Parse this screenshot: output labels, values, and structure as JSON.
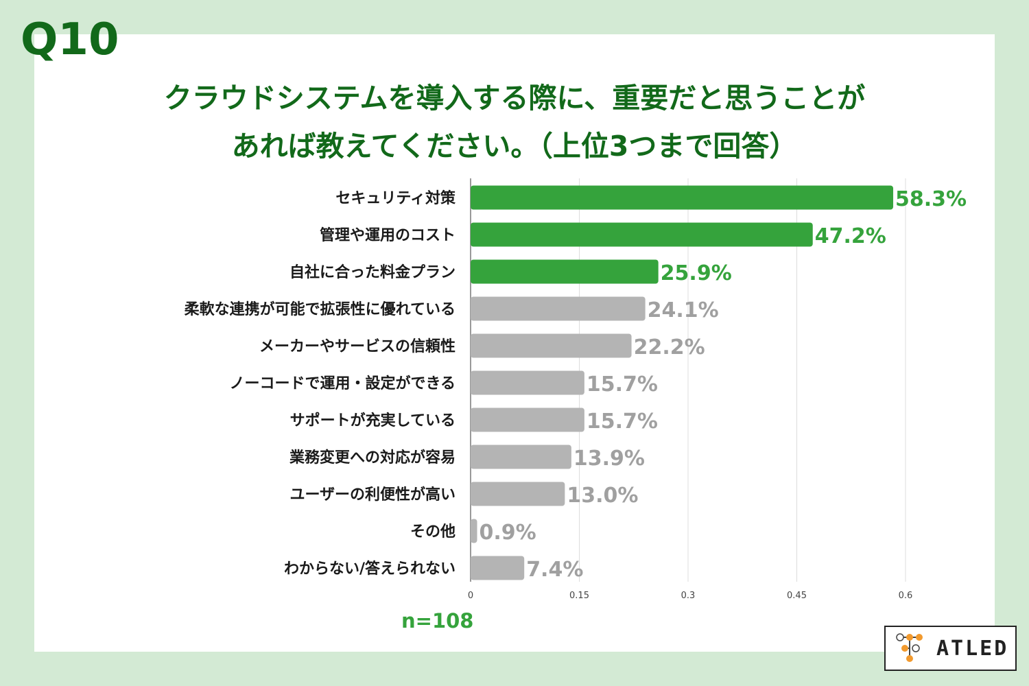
{
  "header": {
    "question_number": "Q10",
    "title_line1": "クラウドシステムを導入する際に、重要だと思うことが",
    "title_line2": "あれば教えてください。（上位3つまで回答）"
  },
  "sample_size": "n=108",
  "logo": {
    "text": "ATLED",
    "icon": "atled-node-logo-icon"
  },
  "colors": {
    "highlight_bar": "#35a33c",
    "other_bar": "#b4b4b4",
    "highlight_label": "#35a33c",
    "other_label": "#a0a0a0",
    "title": "#12691a",
    "background": "#d3ead4"
  },
  "chart_data": {
    "type": "bar",
    "orientation": "horizontal",
    "categories": [
      "セキュリティ対策",
      "管理や運用のコスト",
      "自社に合った料金プラン",
      "柔軟な連携が可能で拡張性に優れている",
      "メーカーやサービスの信頼性",
      "ノーコードで運用・設定ができる",
      "サポートが充実している",
      "業務変更への対応が容易",
      "ユーザーの利便性が高い",
      "その他",
      "わからない/答えられない"
    ],
    "values": [
      0.583,
      0.472,
      0.259,
      0.241,
      0.222,
      0.157,
      0.157,
      0.139,
      0.13,
      0.009,
      0.074
    ],
    "data_labels": [
      "58.3%",
      "47.2%",
      "25.9%",
      "24.1%",
      "22.2%",
      "15.7%",
      "15.7%",
      "13.9%",
      "13.0%",
      "0.9%",
      "7.4%"
    ],
    "highlighted": [
      true,
      true,
      true,
      false,
      false,
      false,
      false,
      false,
      false,
      false,
      false
    ],
    "xlim": [
      0,
      0.6
    ],
    "x_ticks": [
      0,
      0.15,
      0.3,
      0.45,
      0.6
    ],
    "x_tick_labels": [
      "0",
      "0.15",
      "0.3",
      "0.45",
      "0.6"
    ],
    "grid": "vertical",
    "legend": "none"
  }
}
